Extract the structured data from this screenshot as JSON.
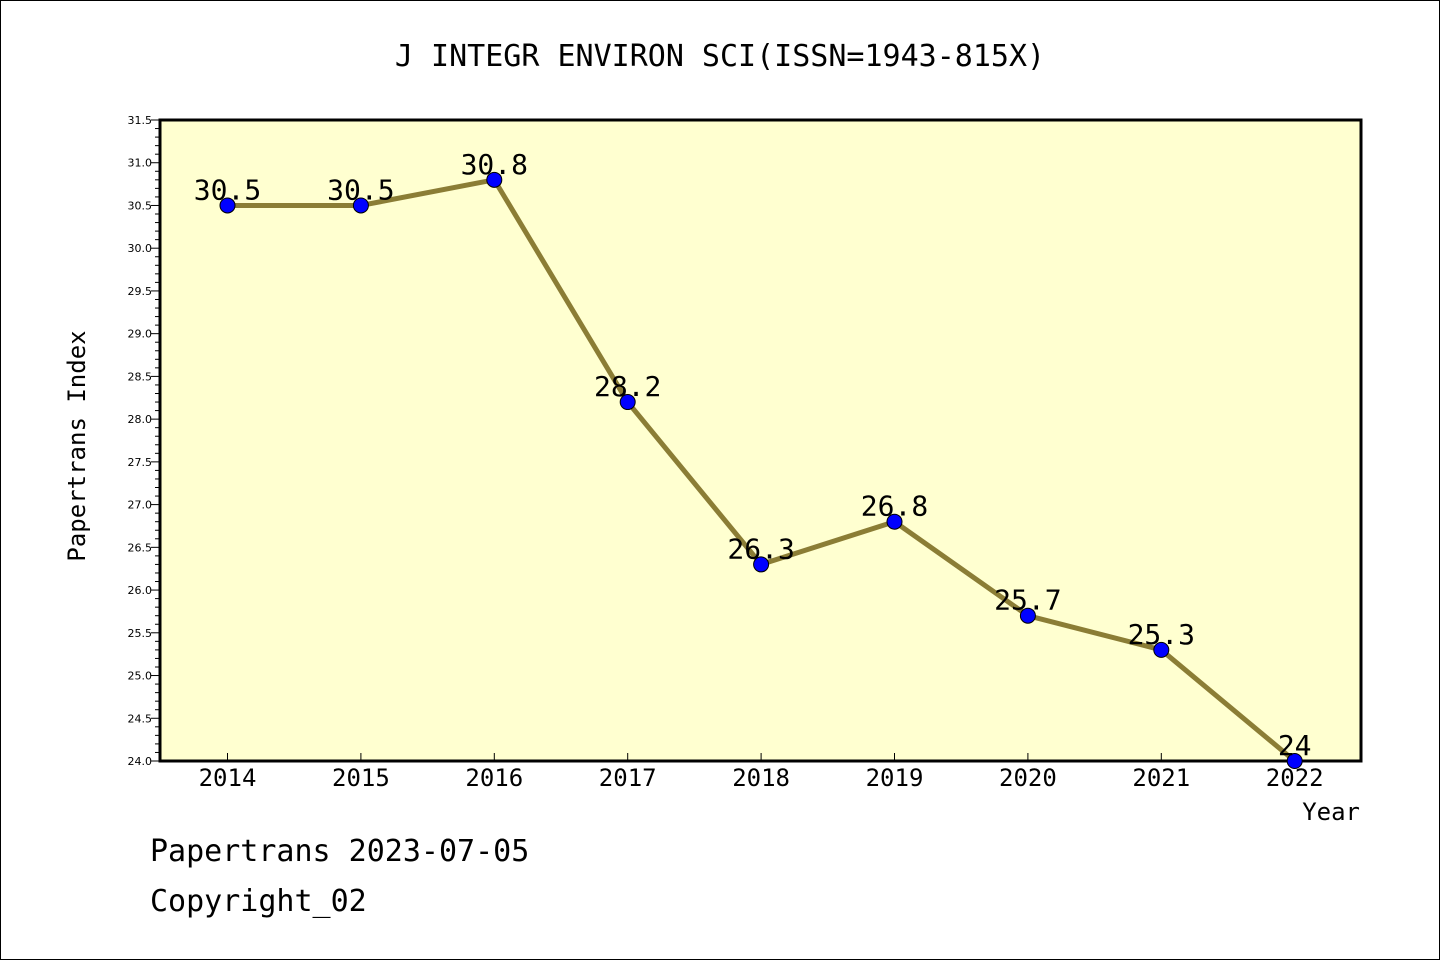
{
  "chart_data": {
    "type": "line",
    "title": "J INTEGR ENVIRON SCI(ISSN=1943-815X)",
    "xlabel": "Year",
    "ylabel": "Papertrans Index",
    "categories": [
      "2014",
      "2015",
      "2016",
      "2017",
      "2018",
      "2019",
      "2020",
      "2021",
      "2022"
    ],
    "values": [
      30.5,
      30.5,
      30.8,
      28.2,
      26.3,
      26.8,
      25.7,
      25.3,
      24.0
    ],
    "data_labels": [
      "30.5",
      "30.5",
      "30.8",
      "28.2",
      "26.3",
      "26.8",
      "25.7",
      "25.3",
      "24"
    ],
    "ylim": [
      24.0,
      31.5
    ],
    "yticks": [
      "24.0",
      "24.5",
      "25.0",
      "25.5",
      "26.0",
      "26.5",
      "27.0",
      "27.5",
      "28.0",
      "28.5",
      "29.0",
      "29.5",
      "30.0",
      "30.5",
      "31.0",
      "31.5"
    ],
    "grid": false,
    "colors": {
      "plot_background": "#ffffd0",
      "line": "#8b7d35",
      "marker": "#0000ff"
    }
  },
  "footer": {
    "line1": "Papertrans 2023-07-05",
    "line2": "Copyright_02"
  }
}
